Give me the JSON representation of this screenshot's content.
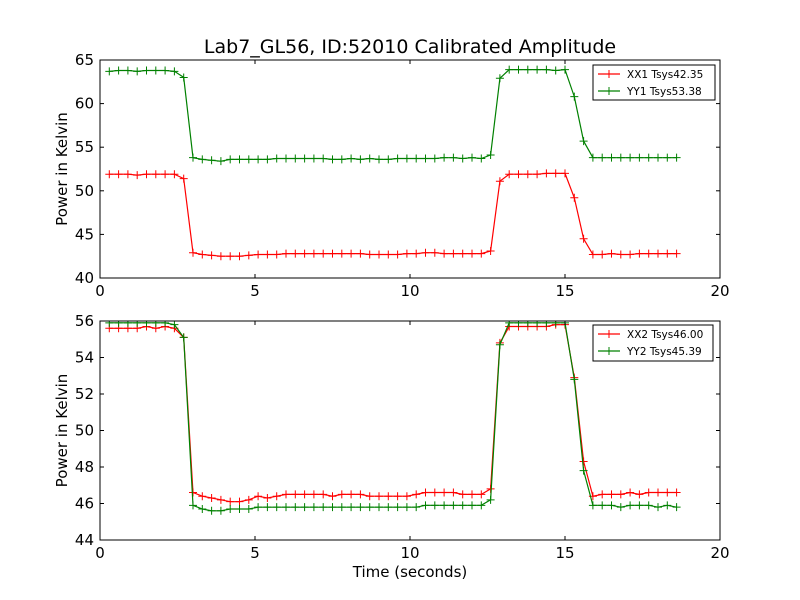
{
  "title": "Lab7_GL56, ID:52010 Calibrated Amplitude",
  "xlabel": "Time (seconds)",
  "chart_data": [
    {
      "type": "line",
      "ylabel": "Power in Kelvin",
      "xlim": [
        0,
        20
      ],
      "ylim": [
        40,
        65
      ],
      "xticks": [
        "0",
        "5",
        "10",
        "15",
        "20"
      ],
      "yticks": [
        "40",
        "45",
        "50",
        "55",
        "60",
        "65"
      ],
      "grid": false,
      "legend_position": "top-right",
      "x": [
        0.3,
        0.6,
        0.9,
        1.2,
        1.5,
        1.8,
        2.1,
        2.4,
        2.7,
        3.0,
        3.3,
        3.6,
        3.9,
        4.2,
        4.5,
        4.8,
        5.1,
        5.4,
        5.7,
        6.0,
        6.3,
        6.6,
        6.9,
        7.2,
        7.5,
        7.8,
        8.1,
        8.4,
        8.7,
        9.0,
        9.3,
        9.6,
        9.9,
        10.2,
        10.5,
        10.8,
        11.1,
        11.4,
        11.7,
        12.0,
        12.3,
        12.6,
        12.9,
        13.2,
        13.5,
        13.8,
        14.1,
        14.4,
        14.7,
        15.0,
        15.3,
        15.6,
        15.9,
        16.2,
        16.5,
        16.8,
        17.1,
        17.4,
        17.7,
        18.0,
        18.3,
        18.6
      ],
      "series": [
        {
          "name": "XX1 Tsys42.35",
          "color": "#ff0000",
          "values": [
            51.9,
            51.9,
            51.9,
            51.8,
            51.9,
            51.9,
            51.9,
            51.9,
            51.4,
            42.9,
            42.7,
            42.6,
            42.5,
            42.5,
            42.5,
            42.6,
            42.7,
            42.7,
            42.7,
            42.8,
            42.8,
            42.8,
            42.8,
            42.8,
            42.8,
            42.8,
            42.8,
            42.8,
            42.7,
            42.7,
            42.7,
            42.7,
            42.8,
            42.8,
            42.9,
            42.9,
            42.8,
            42.8,
            42.8,
            42.8,
            42.8,
            43.1,
            51.1,
            51.9,
            51.9,
            51.9,
            51.9,
            52.0,
            52.0,
            52.0,
            49.2,
            44.5,
            42.7,
            42.7,
            42.8,
            42.7,
            42.7,
            42.8,
            42.8,
            42.8,
            42.8,
            42.8
          ]
        },
        {
          "name": "YY1 Tsys53.38",
          "color": "#008000",
          "values": [
            63.7,
            63.8,
            63.8,
            63.7,
            63.8,
            63.8,
            63.8,
            63.7,
            63.0,
            53.8,
            53.6,
            53.5,
            53.4,
            53.6,
            53.6,
            53.6,
            53.6,
            53.6,
            53.7,
            53.7,
            53.7,
            53.7,
            53.7,
            53.7,
            53.6,
            53.6,
            53.7,
            53.6,
            53.7,
            53.6,
            53.6,
            53.7,
            53.7,
            53.7,
            53.7,
            53.7,
            53.8,
            53.8,
            53.7,
            53.8,
            53.7,
            54.1,
            62.9,
            63.9,
            63.9,
            63.9,
            63.9,
            63.9,
            63.8,
            63.9,
            60.8,
            55.7,
            53.8,
            53.8,
            53.8,
            53.8,
            53.8,
            53.8,
            53.8,
            53.8,
            53.8,
            53.8
          ]
        }
      ]
    },
    {
      "type": "line",
      "ylabel": "Power in Kelvin",
      "xlabel": "Time (seconds)",
      "xlim": [
        0,
        20
      ],
      "ylim": [
        44,
        56
      ],
      "xticks": [
        "0",
        "5",
        "10",
        "15",
        "20"
      ],
      "yticks": [
        "44",
        "46",
        "48",
        "50",
        "52",
        "54",
        "56"
      ],
      "grid": false,
      "legend_position": "top-right",
      "x": [
        0.3,
        0.6,
        0.9,
        1.2,
        1.5,
        1.8,
        2.1,
        2.4,
        2.7,
        3.0,
        3.3,
        3.6,
        3.9,
        4.2,
        4.5,
        4.8,
        5.1,
        5.4,
        5.7,
        6.0,
        6.3,
        6.6,
        6.9,
        7.2,
        7.5,
        7.8,
        8.1,
        8.4,
        8.7,
        9.0,
        9.3,
        9.6,
        9.9,
        10.2,
        10.5,
        10.8,
        11.1,
        11.4,
        11.7,
        12.0,
        12.3,
        12.6,
        12.9,
        13.2,
        13.5,
        13.8,
        14.1,
        14.4,
        14.7,
        15.0,
        15.3,
        15.6,
        15.9,
        16.2,
        16.5,
        16.8,
        17.1,
        17.4,
        17.7,
        18.0,
        18.3,
        18.6
      ],
      "series": [
        {
          "name": "XX2 Tsys46.00",
          "color": "#ff0000",
          "values": [
            55.6,
            55.6,
            55.6,
            55.6,
            55.7,
            55.6,
            55.7,
            55.6,
            55.1,
            46.6,
            46.4,
            46.3,
            46.2,
            46.1,
            46.1,
            46.2,
            46.4,
            46.3,
            46.4,
            46.5,
            46.5,
            46.5,
            46.5,
            46.5,
            46.4,
            46.5,
            46.5,
            46.5,
            46.4,
            46.4,
            46.4,
            46.4,
            46.4,
            46.5,
            46.6,
            46.6,
            46.6,
            46.6,
            46.5,
            46.5,
            46.5,
            46.8,
            54.8,
            55.7,
            55.7,
            55.7,
            55.7,
            55.7,
            55.8,
            55.8,
            52.9,
            48.3,
            46.4,
            46.5,
            46.5,
            46.5,
            46.6,
            46.5,
            46.6,
            46.6,
            46.6,
            46.6
          ]
        },
        {
          "name": "YY2 Tsys45.39",
          "color": "#008000",
          "values": [
            55.9,
            55.9,
            55.9,
            55.9,
            55.9,
            55.9,
            55.9,
            55.8,
            55.1,
            45.9,
            45.7,
            45.6,
            45.6,
            45.7,
            45.7,
            45.7,
            45.8,
            45.8,
            45.8,
            45.8,
            45.8,
            45.8,
            45.8,
            45.8,
            45.8,
            45.8,
            45.8,
            45.8,
            45.8,
            45.8,
            45.8,
            45.8,
            45.8,
            45.8,
            45.9,
            45.9,
            45.9,
            45.9,
            45.9,
            45.9,
            45.9,
            46.2,
            54.7,
            55.9,
            55.9,
            55.9,
            55.9,
            55.9,
            55.9,
            55.9,
            52.8,
            47.8,
            45.9,
            45.9,
            45.9,
            45.8,
            45.9,
            45.9,
            45.9,
            45.8,
            45.9,
            45.8
          ]
        }
      ]
    }
  ]
}
